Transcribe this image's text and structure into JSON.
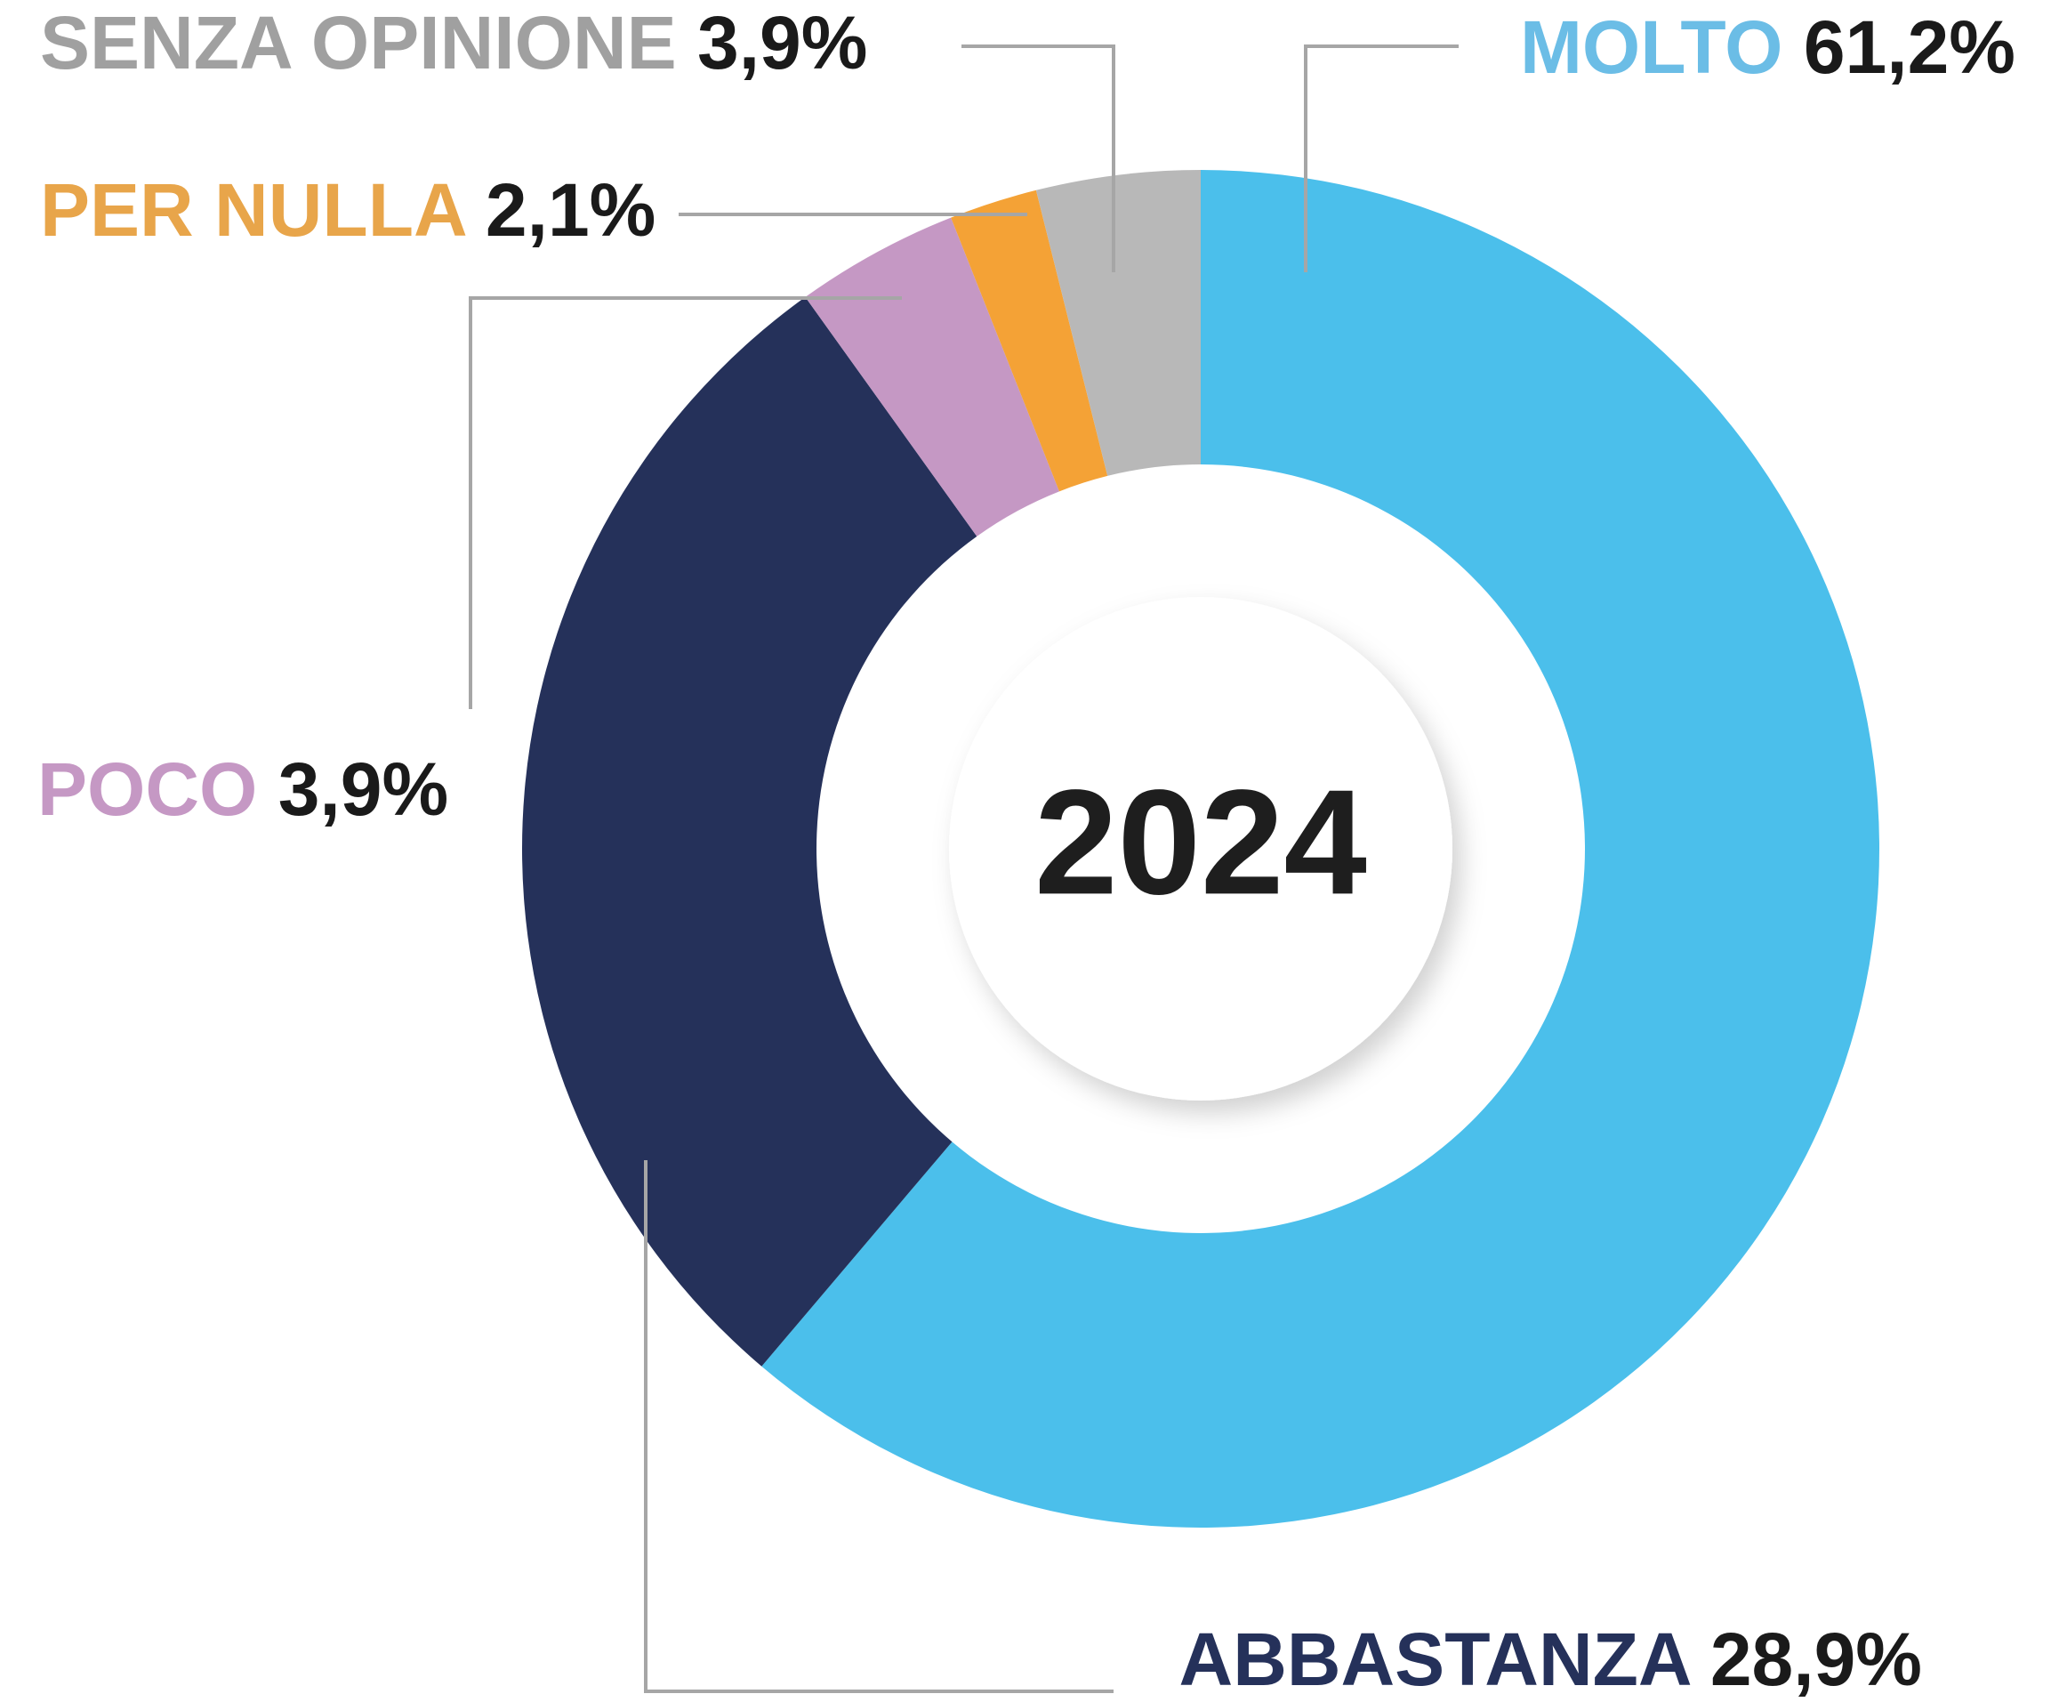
{
  "chart_data": {
    "type": "donut",
    "center_label": "2024",
    "categories": [
      "MOLTO",
      "ABBASTANZA",
      "POCO",
      "PER NULLA",
      "SENZA OPINIONE"
    ],
    "values": [
      61.2,
      28.9,
      3.9,
      2.1,
      3.9
    ],
    "value_labels": [
      "61,2%",
      "28,9%",
      "3,9%",
      "2,1%",
      "3,9%"
    ],
    "colors": [
      "#4bbfeb",
      "#25315a",
      "#c598c4",
      "#f4a236",
      "#b8b8b8"
    ],
    "label_colors": [
      "#6bbde6",
      "#25315a",
      "#c598c4",
      "#e8a54a",
      "#a0a0a0"
    ]
  }
}
